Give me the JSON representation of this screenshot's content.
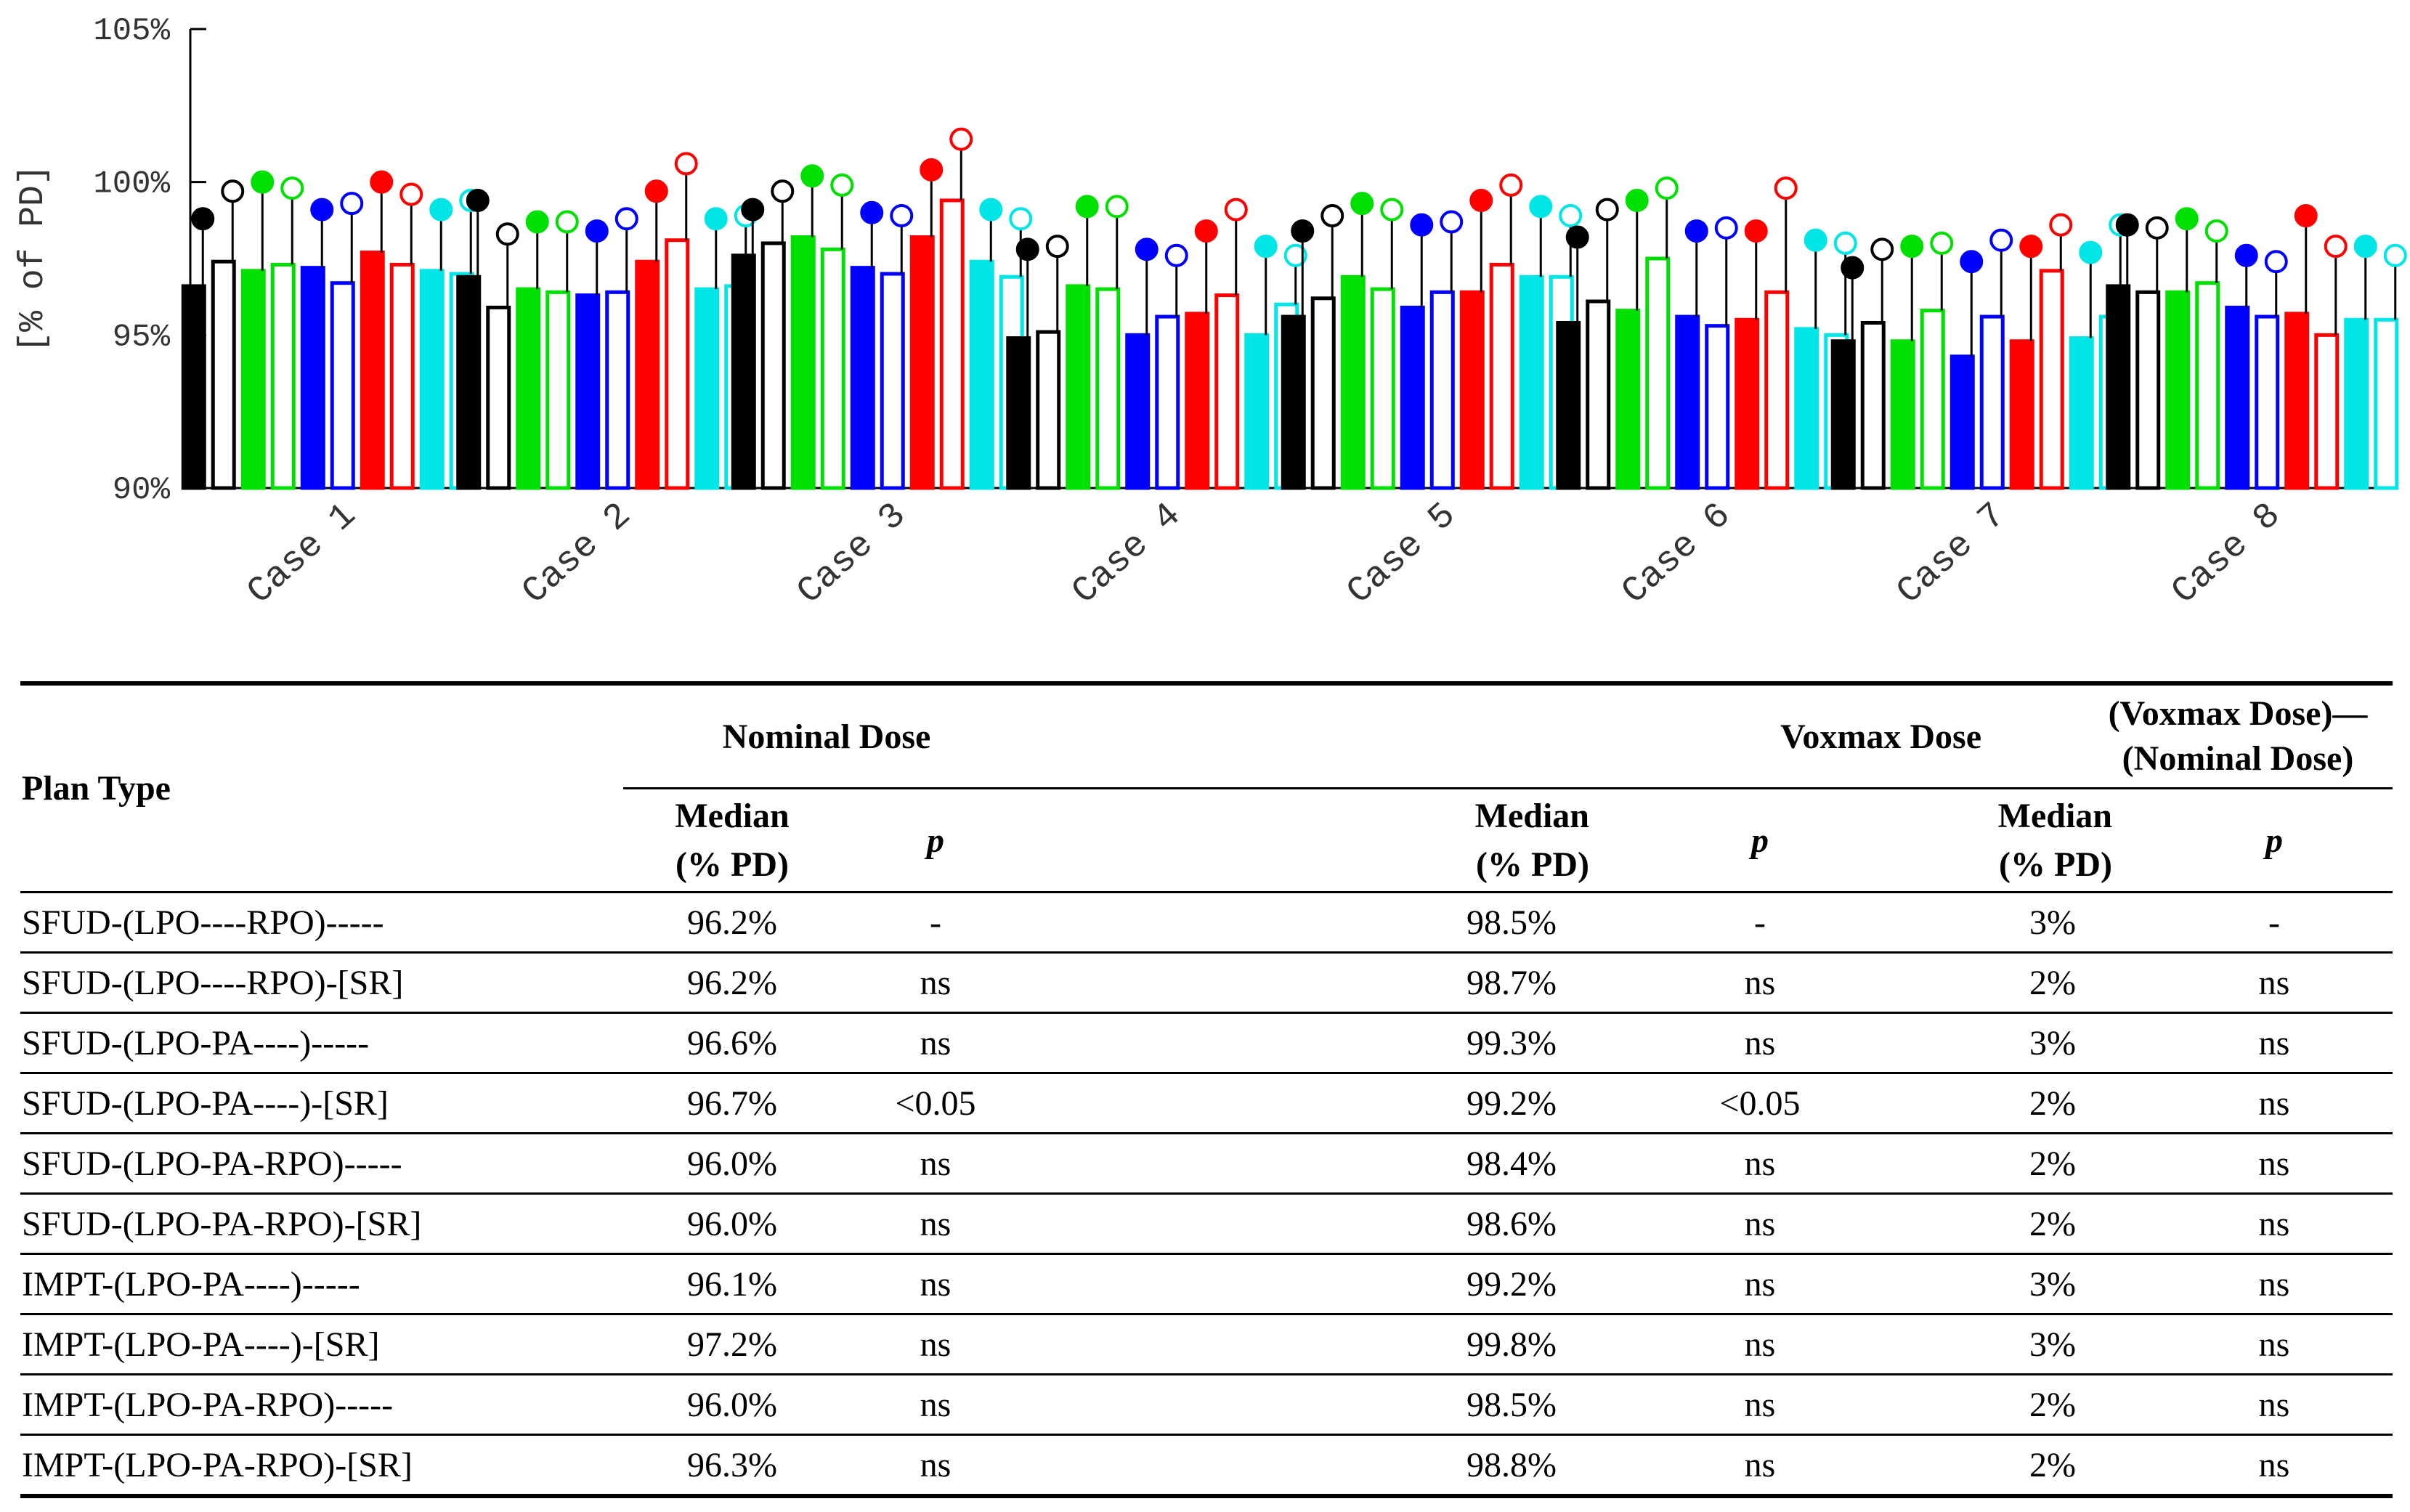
{
  "chart_data": {
    "type": "bar",
    "ylabel": "[% of PD]",
    "ylim": [
      90,
      105
    ],
    "yticks": [
      "90%",
      "95%",
      "100%",
      "105%"
    ],
    "yticks_values": [
      90,
      95,
      100,
      105
    ],
    "categories": [
      "Case 1",
      "Case 2",
      "Case 3",
      "Case 4",
      "Case 5",
      "Case 6",
      "Case 7",
      "Case 8"
    ],
    "series_colors": [
      "#000000",
      "#000000",
      "#00e000",
      "#00e000",
      "#0000ff",
      "#0000ff",
      "#ff0000",
      "#ff0000",
      "#00e6e6",
      "#00e6e6"
    ],
    "series_filled": [
      true,
      false,
      true,
      false,
      true,
      false,
      true,
      false,
      true,
      false
    ],
    "series": [
      {
        "name": "SFUD-(LPO----RPO)-----",
        "nominal": [
          96.6,
          96.9,
          97.6,
          94.9,
          95.6,
          95.4,
          94.8,
          96.6
        ],
        "voxmax": [
          98.8,
          99.4,
          99.1,
          97.8,
          98.4,
          98.2,
          97.2,
          98.6
        ]
      },
      {
        "name": "SFUD-(LPO----RPO)-[SR]",
        "nominal": [
          97.4,
          95.9,
          98.0,
          95.1,
          96.2,
          96.1,
          95.4,
          96.4
        ],
        "voxmax": [
          99.7,
          98.3,
          99.7,
          97.9,
          98.9,
          99.1,
          97.8,
          98.5
        ]
      },
      {
        "name": "SFUD-(LPO-PA----)-----",
        "nominal": [
          97.1,
          96.5,
          98.2,
          96.6,
          96.9,
          95.8,
          94.8,
          96.4
        ],
        "voxmax": [
          100.0,
          98.7,
          100.2,
          99.2,
          99.3,
          99.4,
          97.9,
          98.8
        ]
      },
      {
        "name": "SFUD-(LPO-PA----)-[SR]",
        "nominal": [
          97.3,
          96.4,
          97.8,
          96.5,
          96.5,
          97.5,
          95.8,
          96.7
        ],
        "voxmax": [
          99.8,
          98.7,
          99.9,
          99.2,
          99.1,
          99.8,
          98.0,
          98.4
        ]
      },
      {
        "name": "SFUD-(LPO-PA-RPO)-----",
        "nominal": [
          97.2,
          96.3,
          97.2,
          95.0,
          95.9,
          95.6,
          94.3,
          95.9
        ],
        "voxmax": [
          99.1,
          98.4,
          99.0,
          97.8,
          98.6,
          98.4,
          97.4,
          97.6
        ]
      },
      {
        "name": "SFUD-(LPO-PA-RPO)-[SR]",
        "nominal": [
          96.7,
          96.4,
          97.0,
          95.6,
          96.4,
          95.3,
          95.6,
          95.6
        ],
        "voxmax": [
          99.3,
          98.8,
          98.9,
          97.6,
          98.7,
          98.5,
          98.1,
          97.4
        ]
      },
      {
        "name": "IMPT-(LPO-PA----)-----",
        "nominal": [
          97.7,
          97.4,
          98.2,
          95.7,
          96.4,
          95.5,
          94.8,
          95.7
        ],
        "voxmax": [
          100.0,
          99.7,
          100.4,
          98.4,
          99.4,
          98.4,
          97.9,
          98.9
        ]
      },
      {
        "name": "IMPT-(LPO-PA----)-[SR]",
        "nominal": [
          97.3,
          98.1,
          99.4,
          96.3,
          97.3,
          96.4,
          97.1,
          95.0
        ],
        "voxmax": [
          99.6,
          100.6,
          101.4,
          99.1,
          99.9,
          99.8,
          98.6,
          97.9
        ]
      },
      {
        "name": "IMPT-(LPO-PA-RPO)-----",
        "nominal": [
          97.1,
          96.5,
          97.4,
          95.0,
          96.9,
          95.2,
          94.9,
          95.5
        ],
        "voxmax": [
          99.1,
          98.8,
          99.1,
          97.9,
          99.2,
          98.1,
          97.7,
          97.9
        ]
      },
      {
        "name": "IMPT-(LPO-PA-RPO)-[SR]",
        "nominal": [
          97.0,
          96.6,
          96.9,
          96.0,
          96.9,
          95.0,
          95.6,
          95.5
        ],
        "voxmax": [
          99.4,
          98.9,
          98.8,
          97.6,
          98.9,
          98.0,
          98.6,
          97.6
        ]
      }
    ]
  },
  "table": {
    "headers": {
      "plan_type": "Plan Type",
      "nominal_dose": "Nominal Dose",
      "voxmax_dose": "Voxmax Dose",
      "difference": "(Voxmax Dose)—(Nominal Dose)",
      "median_line1": "Median",
      "median_line2": "(% PD)",
      "p": "p"
    },
    "rows": [
      {
        "plan": "SFUD-(LPO----RPO)-----",
        "nom_median": "96.2%",
        "nom_p": "-",
        "vox_median": "98.5%",
        "vox_p": "-",
        "diff_median": "3%",
        "diff_p": "-"
      },
      {
        "plan": "SFUD-(LPO----RPO)-[SR]",
        "nom_median": "96.2%",
        "nom_p": "ns",
        "vox_median": "98.7%",
        "vox_p": "ns",
        "diff_median": "2%",
        "diff_p": "ns"
      },
      {
        "plan": "SFUD-(LPO-PA----)-----",
        "nom_median": "96.6%",
        "nom_p": "ns",
        "vox_median": "99.3%",
        "vox_p": "ns",
        "diff_median": "3%",
        "diff_p": "ns"
      },
      {
        "plan": "SFUD-(LPO-PA----)-[SR]",
        "nom_median": "96.7%",
        "nom_p": "<0.05",
        "vox_median": "99.2%",
        "vox_p": "<0.05",
        "diff_median": "2%",
        "diff_p": "ns"
      },
      {
        "plan": "SFUD-(LPO-PA-RPO)-----",
        "nom_median": "96.0%",
        "nom_p": "ns",
        "vox_median": "98.4%",
        "vox_p": "ns",
        "diff_median": "2%",
        "diff_p": "ns"
      },
      {
        "plan": "SFUD-(LPO-PA-RPO)-[SR]",
        "nom_median": "96.0%",
        "nom_p": "ns",
        "vox_median": "98.6%",
        "vox_p": "ns",
        "diff_median": "2%",
        "diff_p": "ns"
      },
      {
        "plan": "IMPT-(LPO-PA----)-----",
        "nom_median": "96.1%",
        "nom_p": "ns",
        "vox_median": "99.2%",
        "vox_p": "ns",
        "diff_median": "3%",
        "diff_p": "ns"
      },
      {
        "plan": "IMPT-(LPO-PA----)-[SR]",
        "nom_median": "97.2%",
        "nom_p": "ns",
        "vox_median": "99.8%",
        "vox_p": "ns",
        "diff_median": "3%",
        "diff_p": "ns"
      },
      {
        "plan": "IMPT-(LPO-PA-RPO)-----",
        "nom_median": "96.0%",
        "nom_p": "ns",
        "vox_median": "98.5%",
        "vox_p": "ns",
        "diff_median": "2%",
        "diff_p": "ns"
      },
      {
        "plan": "IMPT-(LPO-PA-RPO)-[SR]",
        "nom_median": "96.3%",
        "nom_p": "ns",
        "vox_median": "98.8%",
        "vox_p": "ns",
        "diff_median": "2%",
        "diff_p": "ns"
      }
    ]
  }
}
